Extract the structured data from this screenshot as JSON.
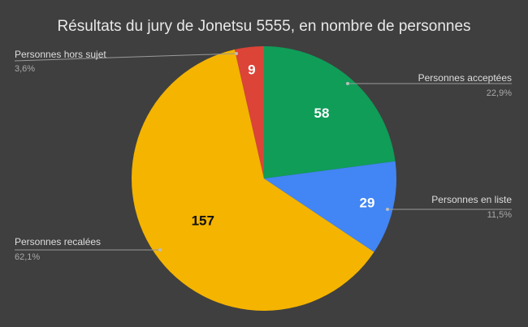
{
  "chart_data": {
    "type": "pie",
    "title": "Résultats du jury de Jonetsu 5555, en nombre de personnes",
    "slices": [
      {
        "label": "Personnes acceptées",
        "value": 58,
        "percent_label": "22,9%",
        "color": "#0f9d58"
      },
      {
        "label": "Personnes en liste",
        "value": 29,
        "percent_label": "11,5%",
        "color": "#4285f4"
      },
      {
        "label": "Personnes recalées",
        "value": 157,
        "percent_label": "62,1%",
        "color": "#f4b400"
      },
      {
        "label": "Personnes hors sujet",
        "value": 9,
        "percent_label": "3,6%",
        "color": "#db4437"
      }
    ],
    "start_angle": "top",
    "direction": "clockwise",
    "background": "#3f3f3f"
  }
}
